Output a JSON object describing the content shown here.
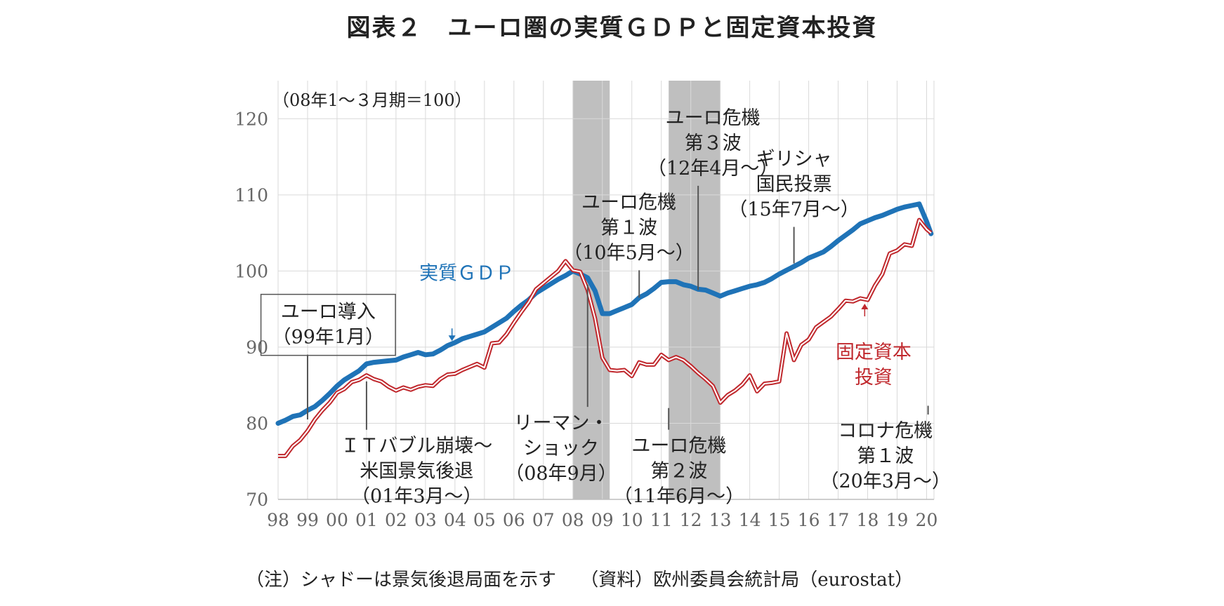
{
  "title": "図表２　ユーロ圏の実質ＧＤＰと固定資本投資",
  "note": "（注）シャドーは景気後退局面を示す　 （資料）欧州委員会統計局（eurostat）",
  "chart_data": {
    "type": "line",
    "unit_label": "（08年1～３月期＝100）",
    "ylim": [
      70,
      125
    ],
    "yticks": [
      70,
      80,
      90,
      100,
      110,
      120
    ],
    "xlim": [
      1998.0,
      2020.25
    ],
    "xticks": [
      {
        "v": 1998,
        "label": "98"
      },
      {
        "v": 1999,
        "label": "99"
      },
      {
        "v": 2000,
        "label": "00"
      },
      {
        "v": 2001,
        "label": "01"
      },
      {
        "v": 2002,
        "label": "02"
      },
      {
        "v": 2003,
        "label": "03"
      },
      {
        "v": 2004,
        "label": "04"
      },
      {
        "v": 2005,
        "label": "05"
      },
      {
        "v": 2006,
        "label": "06"
      },
      {
        "v": 2007,
        "label": "07"
      },
      {
        "v": 2008,
        "label": "08"
      },
      {
        "v": 2009,
        "label": "09"
      },
      {
        "v": 2010,
        "label": "10"
      },
      {
        "v": 2011,
        "label": "11"
      },
      {
        "v": 2012,
        "label": "12"
      },
      {
        "v": 2013,
        "label": "13"
      },
      {
        "v": 2014,
        "label": "14"
      },
      {
        "v": 2015,
        "label": "15"
      },
      {
        "v": 2016,
        "label": "16"
      },
      {
        "v": 2017,
        "label": "17"
      },
      {
        "v": 2018,
        "label": "18"
      },
      {
        "v": 2019,
        "label": "19"
      },
      {
        "v": 2020,
        "label": "20"
      }
    ],
    "grid": true,
    "recessions": [
      [
        2008.0,
        2009.25
      ],
      [
        2011.25,
        2013.0
      ]
    ],
    "series": [
      {
        "name": "実質ＧＤＰ",
        "color": "#1f73b7",
        "style": "solid",
        "points": [
          [
            1998.0,
            80.0
          ],
          [
            1998.25,
            80.4
          ],
          [
            1998.5,
            80.9
          ],
          [
            1998.75,
            81.1
          ],
          [
            1999.0,
            81.7
          ],
          [
            1999.25,
            82.2
          ],
          [
            1999.5,
            83.0
          ],
          [
            1999.75,
            83.9
          ],
          [
            2000.0,
            84.9
          ],
          [
            2000.25,
            85.7
          ],
          [
            2000.5,
            86.3
          ],
          [
            2000.75,
            86.9
          ],
          [
            2001.0,
            87.8
          ],
          [
            2001.25,
            88.0
          ],
          [
            2001.5,
            88.1
          ],
          [
            2001.75,
            88.2
          ],
          [
            2002.0,
            88.3
          ],
          [
            2002.25,
            88.7
          ],
          [
            2002.5,
            89.0
          ],
          [
            2002.75,
            89.3
          ],
          [
            2003.0,
            89.0
          ],
          [
            2003.25,
            89.1
          ],
          [
            2003.5,
            89.6
          ],
          [
            2003.75,
            90.2
          ],
          [
            2004.0,
            90.6
          ],
          [
            2004.25,
            91.1
          ],
          [
            2004.5,
            91.4
          ],
          [
            2004.75,
            91.7
          ],
          [
            2005.0,
            92.0
          ],
          [
            2005.25,
            92.6
          ],
          [
            2005.5,
            93.2
          ],
          [
            2005.75,
            93.8
          ],
          [
            2006.0,
            94.7
          ],
          [
            2006.25,
            95.5
          ],
          [
            2006.5,
            96.2
          ],
          [
            2006.75,
            97.1
          ],
          [
            2007.0,
            97.7
          ],
          [
            2007.25,
            98.3
          ],
          [
            2007.5,
            98.9
          ],
          [
            2007.75,
            99.4
          ],
          [
            2008.0,
            100.0
          ],
          [
            2008.25,
            99.6
          ],
          [
            2008.5,
            99.1
          ],
          [
            2008.75,
            97.4
          ],
          [
            2009.0,
            94.4
          ],
          [
            2009.25,
            94.4
          ],
          [
            2009.5,
            94.8
          ],
          [
            2009.75,
            95.2
          ],
          [
            2010.0,
            95.6
          ],
          [
            2010.25,
            96.5
          ],
          [
            2010.5,
            97.0
          ],
          [
            2010.75,
            97.7
          ],
          [
            2011.0,
            98.5
          ],
          [
            2011.25,
            98.6
          ],
          [
            2011.5,
            98.6
          ],
          [
            2011.75,
            98.2
          ],
          [
            2012.0,
            98.0
          ],
          [
            2012.25,
            97.6
          ],
          [
            2012.5,
            97.5
          ],
          [
            2012.75,
            97.1
          ],
          [
            2013.0,
            96.7
          ],
          [
            2013.25,
            97.1
          ],
          [
            2013.5,
            97.4
          ],
          [
            2013.75,
            97.7
          ],
          [
            2014.0,
            98.0
          ],
          [
            2014.25,
            98.2
          ],
          [
            2014.5,
            98.5
          ],
          [
            2014.75,
            99.0
          ],
          [
            2015.0,
            99.6
          ],
          [
            2015.25,
            100.1
          ],
          [
            2015.5,
            100.6
          ],
          [
            2015.75,
            101.1
          ],
          [
            2016.0,
            101.7
          ],
          [
            2016.25,
            102.1
          ],
          [
            2016.5,
            102.5
          ],
          [
            2016.75,
            103.2
          ],
          [
            2017.0,
            104.0
          ],
          [
            2017.25,
            104.7
          ],
          [
            2017.5,
            105.4
          ],
          [
            2017.75,
            106.2
          ],
          [
            2018.0,
            106.6
          ],
          [
            2018.25,
            107.0
          ],
          [
            2018.5,
            107.3
          ],
          [
            2018.75,
            107.7
          ],
          [
            2019.0,
            108.1
          ],
          [
            2019.25,
            108.4
          ],
          [
            2019.5,
            108.6
          ],
          [
            2019.75,
            108.8
          ],
          [
            2020.0,
            106.5
          ],
          [
            2020.15,
            104.9
          ]
        ]
      },
      {
        "name": "固定資本投資",
        "color": "#c0282d",
        "style": "double",
        "points": [
          [
            1998.0,
            75.7
          ],
          [
            1998.25,
            75.7
          ],
          [
            1998.5,
            77.0
          ],
          [
            1998.75,
            77.8
          ],
          [
            1999.0,
            79.0
          ],
          [
            1999.25,
            80.5
          ],
          [
            1999.5,
            81.7
          ],
          [
            1999.75,
            82.7
          ],
          [
            2000.0,
            84.0
          ],
          [
            2000.25,
            84.5
          ],
          [
            2000.5,
            85.4
          ],
          [
            2000.75,
            85.7
          ],
          [
            2001.0,
            86.3
          ],
          [
            2001.25,
            85.8
          ],
          [
            2001.5,
            85.5
          ],
          [
            2001.75,
            84.8
          ],
          [
            2002.0,
            84.3
          ],
          [
            2002.25,
            84.7
          ],
          [
            2002.5,
            84.4
          ],
          [
            2002.75,
            84.8
          ],
          [
            2003.0,
            85.0
          ],
          [
            2003.25,
            84.9
          ],
          [
            2003.5,
            85.8
          ],
          [
            2003.75,
            86.4
          ],
          [
            2004.0,
            86.5
          ],
          [
            2004.25,
            87.0
          ],
          [
            2004.5,
            87.4
          ],
          [
            2004.75,
            87.8
          ],
          [
            2005.0,
            87.3
          ],
          [
            2005.25,
            90.5
          ],
          [
            2005.5,
            90.6
          ],
          [
            2005.75,
            91.7
          ],
          [
            2006.0,
            93.2
          ],
          [
            2006.25,
            94.6
          ],
          [
            2006.5,
            95.9
          ],
          [
            2006.75,
            97.6
          ],
          [
            2007.0,
            98.4
          ],
          [
            2007.25,
            99.2
          ],
          [
            2007.5,
            100.0
          ],
          [
            2007.75,
            101.3
          ],
          [
            2008.0,
            100.1
          ],
          [
            2008.25,
            99.9
          ],
          [
            2008.5,
            97.5
          ],
          [
            2008.75,
            93.8
          ],
          [
            2009.0,
            88.6
          ],
          [
            2009.25,
            87.0
          ],
          [
            2009.5,
            86.9
          ],
          [
            2009.75,
            87.0
          ],
          [
            2010.0,
            86.2
          ],
          [
            2010.25,
            88.0
          ],
          [
            2010.5,
            87.7
          ],
          [
            2010.75,
            87.7
          ],
          [
            2011.0,
            89.0
          ],
          [
            2011.25,
            88.3
          ],
          [
            2011.5,
            88.7
          ],
          [
            2011.75,
            88.3
          ],
          [
            2012.0,
            87.5
          ],
          [
            2012.25,
            86.6
          ],
          [
            2012.5,
            85.8
          ],
          [
            2012.75,
            84.9
          ],
          [
            2013.0,
            82.7
          ],
          [
            2013.25,
            83.7
          ],
          [
            2013.5,
            84.3
          ],
          [
            2013.75,
            85.1
          ],
          [
            2014.0,
            86.3
          ],
          [
            2014.25,
            84.2
          ],
          [
            2014.5,
            85.2
          ],
          [
            2014.75,
            85.3
          ],
          [
            2015.0,
            85.5
          ],
          [
            2015.25,
            91.8
          ],
          [
            2015.5,
            88.3
          ],
          [
            2015.75,
            90.3
          ],
          [
            2016.0,
            91.0
          ],
          [
            2016.25,
            92.6
          ],
          [
            2016.5,
            93.3
          ],
          [
            2016.75,
            94.0
          ],
          [
            2017.0,
            95.0
          ],
          [
            2017.25,
            96.1
          ],
          [
            2017.5,
            96.0
          ],
          [
            2017.75,
            96.4
          ],
          [
            2018.0,
            96.2
          ],
          [
            2018.25,
            98.1
          ],
          [
            2018.5,
            99.6
          ],
          [
            2018.75,
            102.3
          ],
          [
            2019.0,
            102.7
          ],
          [
            2019.25,
            103.5
          ],
          [
            2019.5,
            103.3
          ],
          [
            2019.75,
            106.7
          ],
          [
            2020.0,
            105.5
          ],
          [
            2020.15,
            105.0
          ]
        ]
      }
    ],
    "annotations": [
      {
        "lines": [
          "ユーロ導入",
          "（99年1月）"
        ],
        "x": 1999.0,
        "y": 80.5,
        "text_x": 1999.7,
        "text_y": 93.8,
        "boxed": true
      },
      {
        "lines": [
          "ＩＴバブル崩壊～",
          "米国景気後退",
          "（01年3月～）"
        ],
        "x": 2001.0,
        "y": 85.5,
        "text_x": 2002.7,
        "text_y": 76.2
      },
      {
        "lines": [
          "リーマン・",
          "ショック",
          "（08年9月）"
        ],
        "x": 2008.5,
        "y": 98.2,
        "text_x": 2007.6,
        "text_y": 79.2
      },
      {
        "lines": [
          "ユーロ危機",
          "第２波",
          "（11年6月～）"
        ],
        "x": 2011.25,
        "y": 82.0,
        "text_x": 2011.6,
        "text_y": 76.2
      },
      {
        "lines": [
          "ユーロ危機",
          "第１波",
          "（10年5月～）"
        ],
        "x": 2010.25,
        "y": 96.5,
        "text_x": 2009.9,
        "text_y": 108.2
      },
      {
        "lines": [
          "ユーロ危機",
          "第３波",
          "（12年4月～）"
        ],
        "x": 2012.25,
        "y": 97.5,
        "text_x": 2012.75,
        "text_y": 119.3
      },
      {
        "lines": [
          "ギリシャ",
          "国民投票",
          "（15年7月～）"
        ],
        "x": 2015.5,
        "y": 101.0,
        "text_x": 2015.5,
        "text_y": 113.9
      },
      {
        "lines": [
          "コロナ危機",
          "第１波",
          "（20年3月～）"
        ],
        "x": 2020.05,
        "y": 82.3,
        "text_x": 2018.6,
        "text_y": 78.2
      }
    ],
    "series_labels": [
      {
        "lines": [
          "実質ＧＤＰ"
        ],
        "color": "#1f73b7",
        "text_x": 2004.4,
        "text_y": 98.9,
        "arrow": [
          2003.9,
          90.8
        ]
      },
      {
        "lines": [
          "固定資本",
          "投資"
        ],
        "color": "#c0282d",
        "text_x": 2018.2,
        "text_y": 88.5,
        "arrow": [
          2017.9,
          95.7
        ]
      }
    ]
  }
}
